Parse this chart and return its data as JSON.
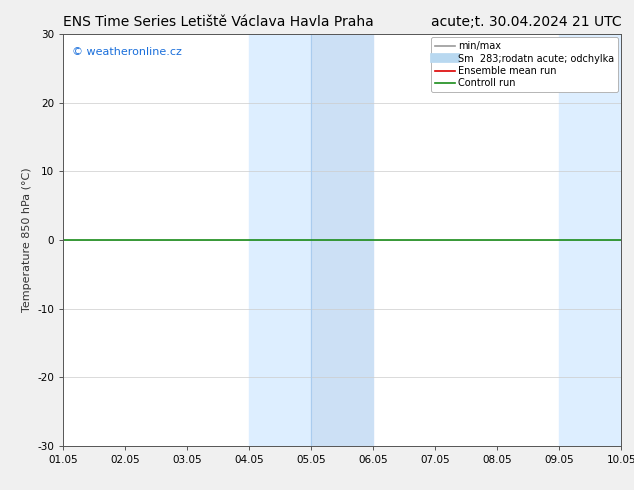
{
  "title_left": "ENS Time Series Letiště Václava Havla Praha",
  "title_right": "acute;t. 30.04.2024 21 UTC",
  "ylabel": "Temperature 850 hPa (°C)",
  "ylim": [
    -30,
    30
  ],
  "yticks": [
    -30,
    -20,
    -10,
    0,
    10,
    20,
    30
  ],
  "xtick_labels": [
    "01.05",
    "02.05",
    "03.05",
    "04.05",
    "05.05",
    "06.05",
    "07.05",
    "08.05",
    "09.05",
    "10.05"
  ],
  "background_color": "#f0f0f0",
  "plot_bg_color": "#ffffff",
  "shaded_regions": [
    {
      "xstart": 3,
      "xend": 4,
      "color": "#ddeeff"
    },
    {
      "xstart": 4,
      "xend": 5,
      "color": "#cce0f5"
    },
    {
      "xstart": 8,
      "xend": 9,
      "color": "#ddeeff"
    }
  ],
  "vertical_lines": [
    {
      "x": 4,
      "color": "#aaccee",
      "lw": 0.8
    }
  ],
  "horizontal_line": {
    "y": 0,
    "color": "#1a8c1a",
    "lw": 1.2
  },
  "watermark_text": "© weatheronline.cz",
  "watermark_color": "#1a6fdb",
  "legend_entries": [
    {
      "label": "min/max",
      "color": "#999999",
      "lw": 1.2
    },
    {
      "label": "Sm  283;rodatn acute; odchylka",
      "color": "#b8d8f0",
      "lw": 7
    },
    {
      "label": "Ensemble mean run",
      "color": "#dd0000",
      "lw": 1.2
    },
    {
      "label": "Controll run",
      "color": "#1a8c1a",
      "lw": 1.2
    }
  ],
  "title_fontsize": 10,
  "tick_fontsize": 7.5,
  "ylabel_fontsize": 8,
  "watermark_fontsize": 8,
  "legend_fontsize": 7
}
